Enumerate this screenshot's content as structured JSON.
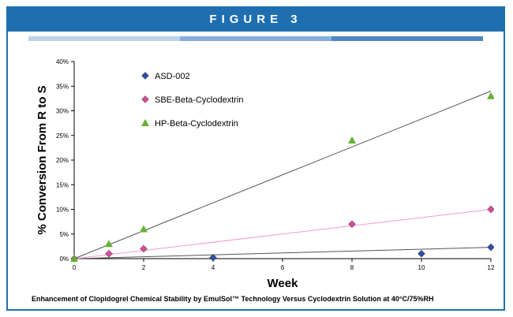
{
  "figure_title": "FIGURE 3",
  "caption": "Enhancement of Clopidogrel Chemical Stability by EmulSol™ Technology Versus Cyclodextrin Solution at 40°C/75%RH",
  "colors": {
    "header": "#1f6fb0",
    "asd": "#2e4fa3",
    "sbe": "#d44e9a",
    "hp": "#66b032",
    "trend_gray": "#555555",
    "trend_pink": "#f09ad0"
  },
  "chart_data": {
    "type": "scatter",
    "xlabel": "Week",
    "ylabel": "% Conversion From R to S",
    "xlim": [
      0,
      12
    ],
    "ylim": [
      0,
      40
    ],
    "x_ticks": [
      "0",
      "2",
      "4",
      "6",
      "8",
      "10",
      "12"
    ],
    "y_ticks": [
      "0%",
      "5%",
      "10%",
      "15%",
      "20%",
      "25%",
      "30%",
      "35%",
      "40%"
    ],
    "legend_position": "top-left",
    "grid": false,
    "series": [
      {
        "name": "ASD-002",
        "marker": "diamond",
        "color": "#2e4fa3",
        "x": [
          0,
          4,
          10,
          12
        ],
        "y": [
          0,
          0.2,
          1.0,
          2.3
        ],
        "trendline": {
          "x": [
            0,
            12
          ],
          "y": [
            0,
            2.3
          ]
        }
      },
      {
        "name": "SBE-Beta-Cyclodextrin",
        "marker": "diamond",
        "color": "#d44e9a",
        "x": [
          0,
          1,
          2,
          8,
          12
        ],
        "y": [
          0,
          1,
          2,
          7,
          10
        ],
        "trendline": {
          "x": [
            0,
            12
          ],
          "y": [
            0,
            10
          ]
        }
      },
      {
        "name": "HP-Beta-Cyclodextrin",
        "marker": "triangle",
        "color": "#66b032",
        "x": [
          0,
          1,
          2,
          8,
          12
        ],
        "y": [
          0,
          3,
          6,
          24,
          33
        ],
        "trendline": {
          "x": [
            0,
            12
          ],
          "y": [
            0,
            34
          ]
        }
      }
    ]
  }
}
